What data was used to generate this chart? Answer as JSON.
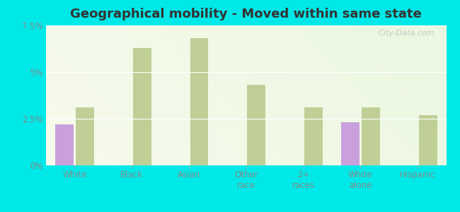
{
  "title": "Geographical mobility - Moved within same state",
  "categories": [
    "White",
    "Black",
    "Asian",
    "Other\nrace",
    "2+\nraces",
    "White\nalone",
    "Hispanic"
  ],
  "eldridge_values": [
    2.2,
    0,
    0,
    0,
    0,
    2.3,
    0
  ],
  "iowa_values": [
    3.1,
    6.3,
    6.8,
    4.3,
    3.1,
    3.1,
    2.7
  ],
  "eldridge_color": "#c9a0dc",
  "iowa_color": "#bfcf96",
  "background_color": "#00e8e8",
  "ylim": [
    0,
    7.5
  ],
  "yticks": [
    0,
    2.5,
    5.0,
    7.5
  ],
  "ytick_labels": [
    "0%",
    "2.5%",
    "5%",
    "7.5%"
  ],
  "bar_width": 0.32,
  "title_fontsize": 13,
  "tick_fontsize": 8.5,
  "legend_fontsize": 9.5
}
